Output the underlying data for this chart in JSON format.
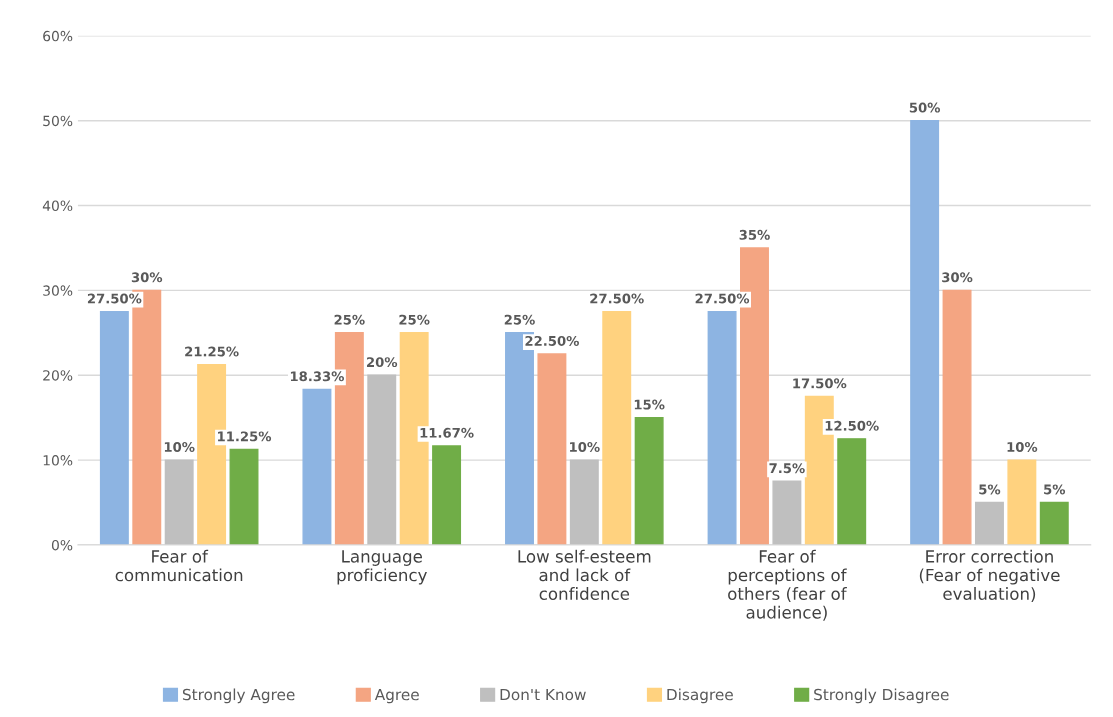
{
  "chart_data": {
    "type": "bar",
    "categories": [
      "Fear of\ncommunication",
      "Language\nproficiency",
      "Low self-esteem\nand lack of\nconfidence",
      "Fear of\nperceptions of\nothers (fear of\naudience)",
      "Error correction\n(Fear of negative\nevaluation)"
    ],
    "series": [
      {
        "name": "Strongly Agree",
        "color": "#8db4e2",
        "values": [
          27.5,
          18.33,
          25,
          27.5,
          50
        ],
        "value_labels": [
          "27.50%",
          "18.33%",
          "25%",
          "27.50%",
          "50%"
        ]
      },
      {
        "name": "Agree",
        "color": "#f4a582",
        "values": [
          30,
          25,
          22.5,
          35,
          30
        ],
        "value_labels": [
          "30%",
          "25%",
          "22.50%",
          "35%",
          "30%"
        ]
      },
      {
        "name": "Don't Know",
        "color": "#bfbfbf",
        "values": [
          10,
          20,
          10,
          7.5,
          5
        ],
        "value_labels": [
          "10%",
          "20%",
          "10%",
          "7.5%",
          "5%"
        ]
      },
      {
        "name": "Disagree",
        "color": "#ffd27f",
        "values": [
          21.25,
          25,
          27.5,
          17.5,
          10
        ],
        "value_labels": [
          "21.25%",
          "25%",
          "27.50%",
          "17.50%",
          "10%"
        ]
      },
      {
        "name": "Strongly Disagree",
        "color": "#70ad47",
        "values": [
          11.25,
          11.67,
          15,
          12.5,
          5
        ],
        "value_labels": [
          "11.25%",
          "11.67%",
          "15%",
          "12.50%",
          "5%"
        ]
      }
    ],
    "ylim": [
      0,
      60
    ],
    "yticks": [
      {
        "value": 0,
        "label": "0%"
      },
      {
        "value": 10,
        "label": "10%"
      },
      {
        "value": 20,
        "label": "20%"
      },
      {
        "value": 30,
        "label": "30%"
      },
      {
        "value": 40,
        "label": "40%"
      },
      {
        "value": 50,
        "label": "50%"
      },
      {
        "value": 60,
        "label": "60%"
      }
    ],
    "grid": "y",
    "legend": "bottom"
  }
}
